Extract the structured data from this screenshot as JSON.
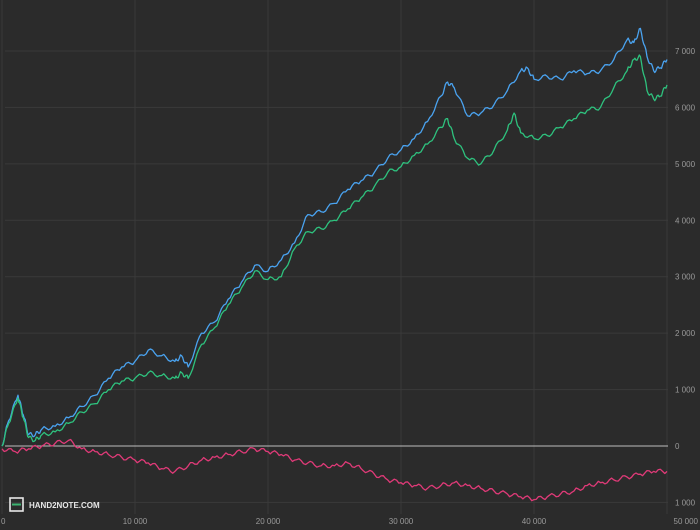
{
  "logo": {
    "text": "HAND2NOTE.COM"
  },
  "colors": {
    "background": "#2b2b2b",
    "grid": "#3a3a3a",
    "zero_line": "#bdbdbd",
    "tick_text": "#9a9a9a",
    "logo_accent": "#3cb371"
  },
  "chart_data": {
    "type": "line",
    "title": "",
    "xlabel": "",
    "ylabel": "",
    "xlim": [
      0,
      50000
    ],
    "ylim": [
      -1000,
      7500
    ],
    "grid": true,
    "x_ticks": [
      0,
      10000,
      20000,
      30000,
      40000,
      50000
    ],
    "x_tick_labels": [
      "0",
      "10 000",
      "20 000",
      "30 000",
      "40 000",
      "50 000"
    ],
    "y_ticks": [
      -1000,
      0,
      1000,
      2000,
      3000,
      4000,
      5000,
      6000,
      7000
    ],
    "y_tick_labels": [
      "1 000",
      "0",
      "1 000",
      "2 000",
      "3 000",
      "4 000",
      "5 000",
      "6 000",
      "7 000"
    ],
    "y_axis_position": "right",
    "series": [
      {
        "color": "#4aa3f0",
        "x": [
          0,
          500,
          1200,
          1600,
          2000,
          2500,
          3000,
          4000,
          5000,
          6000,
          7000,
          8000,
          9000,
          10000,
          11000,
          12000,
          13000,
          13500,
          14000,
          15000,
          16000,
          17000,
          18000,
          19000,
          20000,
          21000,
          22000,
          23000,
          24000,
          25000,
          26000,
          27000,
          28000,
          29000,
          30000,
          31000,
          32000,
          33000,
          33500,
          34000,
          35000,
          36000,
          37000,
          38000,
          39000,
          39500,
          40000,
          41000,
          42000,
          43000,
          44000,
          45000,
          46000,
          47000,
          47500,
          48000,
          48500,
          49000,
          49500,
          50000
        ],
        "y": [
          0,
          450,
          900,
          550,
          200,
          200,
          300,
          350,
          500,
          700,
          900,
          1200,
          1400,
          1500,
          1700,
          1600,
          1500,
          1600,
          1400,
          2000,
          2200,
          2600,
          2900,
          3200,
          3100,
          3300,
          3600,
          4100,
          4150,
          4300,
          4550,
          4700,
          4850,
          5100,
          5250,
          5450,
          5750,
          6200,
          6450,
          6350,
          5850,
          5900,
          6050,
          6300,
          6650,
          6700,
          6500,
          6550,
          6500,
          6650,
          6600,
          6650,
          6850,
          7200,
          7150,
          7400,
          6900,
          6650,
          6700,
          6850
        ]
      },
      {
        "color": "#2ec27e",
        "x": [
          0,
          500,
          1200,
          1600,
          2000,
          2500,
          3000,
          4000,
          5000,
          6000,
          7000,
          8000,
          9000,
          10000,
          11000,
          12000,
          13000,
          13500,
          14000,
          15000,
          16000,
          17000,
          18000,
          19000,
          20000,
          21000,
          22000,
          23000,
          24000,
          25000,
          26000,
          27000,
          28000,
          29000,
          30000,
          31000,
          32000,
          33000,
          33500,
          34000,
          35000,
          36000,
          37000,
          38000,
          38500,
          39000,
          40000,
          41000,
          42000,
          43000,
          44000,
          45000,
          46000,
          47000,
          47500,
          48000,
          48500,
          49000,
          49500,
          50000
        ],
        "y": [
          0,
          400,
          850,
          500,
          150,
          100,
          200,
          250,
          400,
          600,
          750,
          1000,
          1150,
          1200,
          1300,
          1250,
          1200,
          1300,
          1200,
          1800,
          2100,
          2500,
          2800,
          3100,
          2950,
          3000,
          3500,
          3800,
          3850,
          4000,
          4200,
          4400,
          4600,
          4850,
          4950,
          5150,
          5350,
          5650,
          5800,
          5450,
          5100,
          5000,
          5250,
          5600,
          5900,
          5550,
          5450,
          5500,
          5650,
          5800,
          5950,
          6000,
          6350,
          6650,
          6850,
          6900,
          6300,
          6150,
          6200,
          6400
        ]
      },
      {
        "color": "#e03a78",
        "x": [
          0,
          1000,
          2000,
          3000,
          4000,
          5000,
          6000,
          7000,
          8000,
          9000,
          10000,
          11000,
          12000,
          13000,
          14000,
          15000,
          16000,
          17000,
          18000,
          19000,
          20000,
          21000,
          22000,
          23000,
          24000,
          25000,
          26000,
          27000,
          28000,
          29000,
          30000,
          31000,
          32000,
          33000,
          34000,
          35000,
          36000,
          37000,
          38000,
          39000,
          40000,
          41000,
          42000,
          43000,
          44000,
          45000,
          46000,
          47000,
          48000,
          49000,
          50000
        ],
        "y": [
          -50,
          -100,
          -50,
          0,
          50,
          100,
          -50,
          -100,
          -150,
          -200,
          -250,
          -300,
          -400,
          -450,
          -350,
          -250,
          -200,
          -150,
          -100,
          -50,
          -100,
          -150,
          -250,
          -300,
          -350,
          -350,
          -300,
          -400,
          -500,
          -600,
          -650,
          -700,
          -750,
          -700,
          -650,
          -700,
          -750,
          -800,
          -850,
          -900,
          -950,
          -900,
          -850,
          -800,
          -700,
          -650,
          -600,
          -550,
          -500,
          -450,
          -450
        ]
      }
    ]
  }
}
